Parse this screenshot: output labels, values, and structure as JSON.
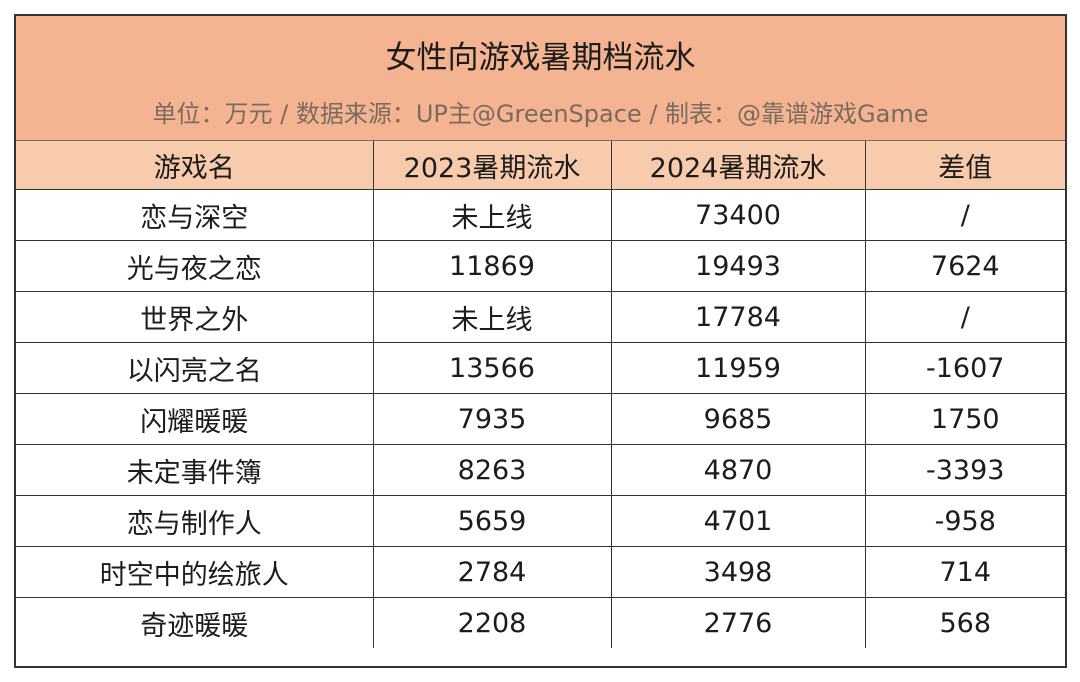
{
  "title": "女性向游戏暑期档流水",
  "subtitle": "单位：万元 / 数据来源：UP主@GreenSpace / 制表：@靠谱游戏Game",
  "colors": {
    "title_bg": "#f4b491",
    "header_bg": "#f8cbad",
    "subtitle_text": "#7a6a60"
  },
  "headers": [
    "游戏名",
    "2023暑期流水",
    "2024暑期流水",
    "差值"
  ],
  "rows": [
    [
      "恋与深空",
      "未上线",
      "73400",
      "/"
    ],
    [
      "光与夜之恋",
      "11869",
      "19493",
      "7624"
    ],
    [
      "世界之外",
      "未上线",
      "17784",
      "/"
    ],
    [
      "以闪亮之名",
      "13566",
      "11959",
      "-1607"
    ],
    [
      "闪耀暖暖",
      "7935",
      "9685",
      "1750"
    ],
    [
      "未定事件簿",
      "8263",
      "4870",
      "-3393"
    ],
    [
      "恋与制作人",
      "5659",
      "4701",
      "-958"
    ],
    [
      "时空中的绘旅人",
      "2784",
      "3498",
      "714"
    ],
    [
      "奇迹暖暖",
      "2208",
      "2776",
      "568"
    ]
  ]
}
